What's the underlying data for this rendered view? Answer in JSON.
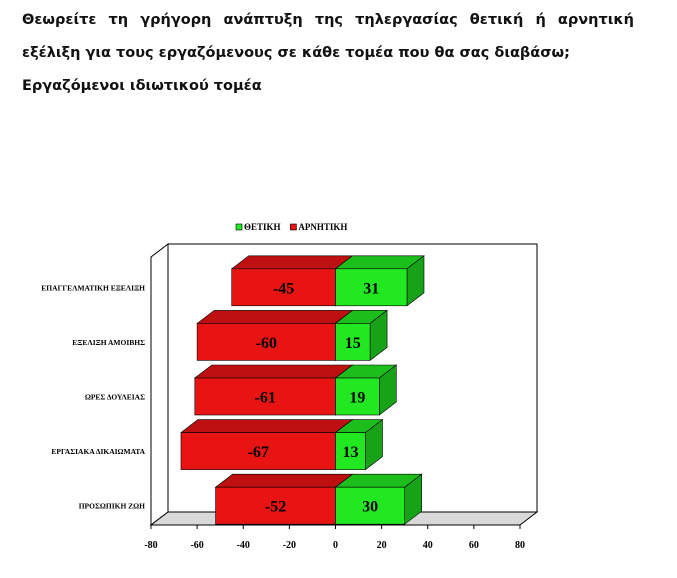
{
  "question": {
    "line1": "Θεωρείτε τη γρήγορη ανάπτυξη της τηλεργασίας θετική ή αρνητική",
    "line2": "εξέλιξη για τους εργαζόμενους σε κάθε τομέα που θα σας διαβάσω;",
    "line3": "Εργαζόμενοι ιδιωτικού τομέα"
  },
  "chart_data": {
    "type": "bar",
    "orientation": "horizontal",
    "stacked": "diverging",
    "categories": [
      "ΕΠΑΓΓΕΛΜΑΤΙΚΗ ΕΞΕΛΙΞΗ",
      "ΕΞΕΛΙΞΗ ΑΜΟΙΒΗΣ",
      "ΩΡΕΣ ΔΟΥΛΕΙΑΣ",
      "ΕΡΓΑΣΙΑΚΑ ΔΙΚΑΙΩΜΑΤΑ",
      "ΠΡΟΣΩΠΙΚΗ ΖΩΗ"
    ],
    "series": [
      {
        "name": "ΘΕΤΙΚΗ",
        "values": [
          31,
          15,
          19,
          13,
          30
        ],
        "color": "#22e822"
      },
      {
        "name": "ΑΡΝΗΤΙΚΗ",
        "values": [
          -45,
          -60,
          -61,
          -67,
          -52
        ],
        "color": "#e81414"
      }
    ],
    "xlim": [
      -80,
      80
    ],
    "xticks": [
      "-80",
      "-60",
      "-40",
      "-20",
      "0",
      "20",
      "40",
      "60",
      "80"
    ],
    "legend_position": "top",
    "grid": false,
    "style": "3d"
  }
}
